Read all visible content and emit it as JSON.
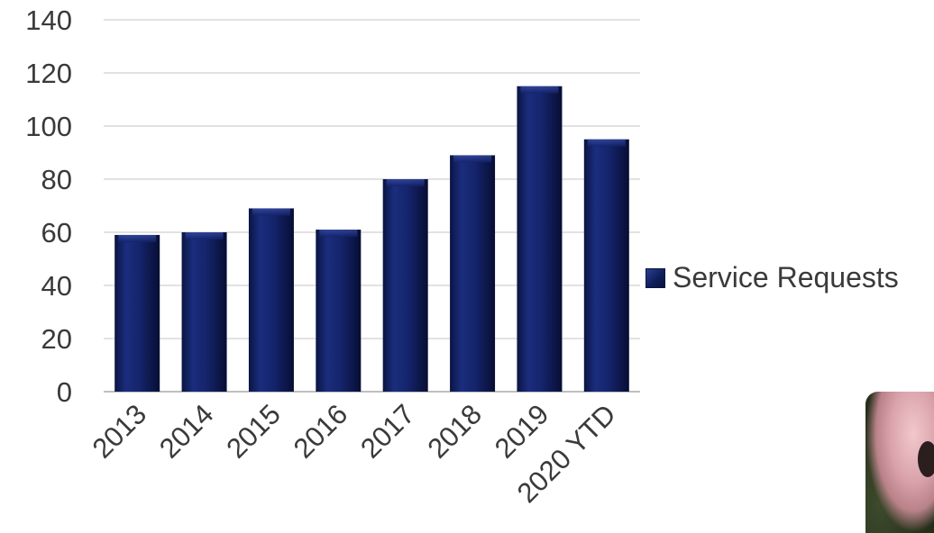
{
  "chart_data": {
    "type": "bar",
    "categories": [
      "2013",
      "2014",
      "2015",
      "2016",
      "2017",
      "2018",
      "2019",
      "2020 YTD"
    ],
    "series": [
      {
        "name": "Service Requests",
        "values": [
          59,
          60,
          69,
          61,
          80,
          89,
          115,
          95
        ]
      }
    ],
    "ylim": [
      0,
      140
    ],
    "yticks": [
      0,
      20,
      40,
      60,
      80,
      100,
      120,
      140
    ],
    "grid": true,
    "legend_position": "right",
    "bar_color": "#13216b",
    "grid_color": "#d9d9d9",
    "tick_label_color": "#3a3a3a"
  },
  "legend": {
    "label": "Service Requests"
  },
  "photo": {
    "icon": "pig-photo"
  }
}
